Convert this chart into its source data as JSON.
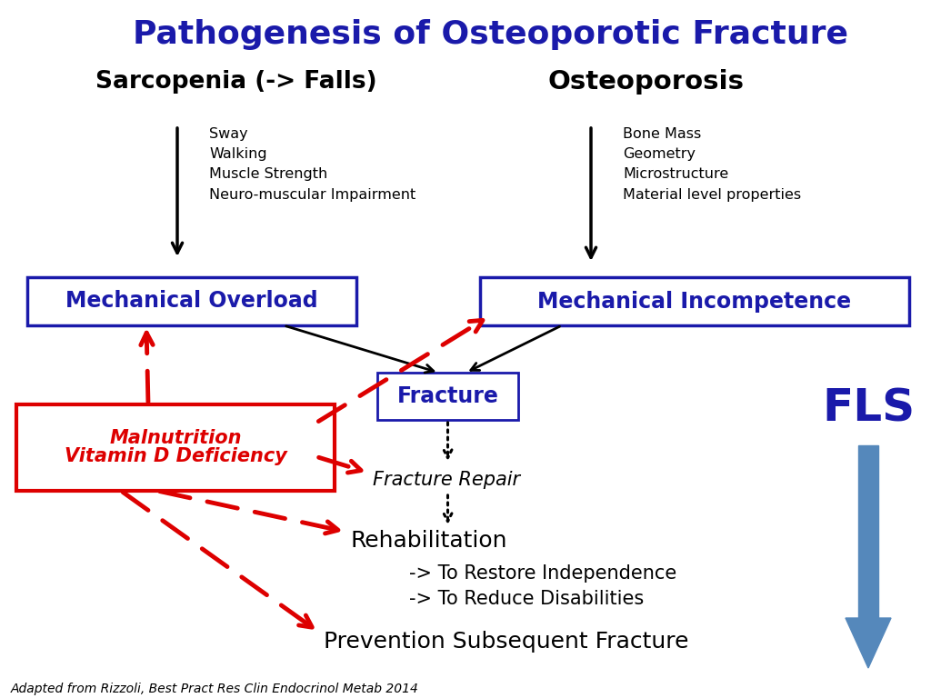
{
  "title": "Pathogenesis of Osteoporotic Fracture",
  "title_color": "#1a1aaa",
  "title_fontsize": 26,
  "bg_color": "#ffffff",
  "sarcopenia_label": "Sarcopenia (-> Falls)",
  "osteoporosis_label": "Osteoporosis",
  "sarcopenia_items": [
    "Sway",
    "Walking",
    "Muscle Strength",
    "Neuro-muscular Impairment"
  ],
  "osteoporosis_items": [
    "Bone Mass",
    "Geometry",
    "Microstructure",
    "Material level properties"
  ],
  "mech_overload_label": "Mechanical Overload",
  "mech_incompetence_label": "Mechanical Incompetence",
  "fracture_label": "Fracture",
  "malnutrition_line1": "Malnutrition",
  "malnutrition_line2": "Vitamin D Deficiency",
  "fracture_repair_label": "Fracture Repair",
  "rehab_label": "Rehabilitation",
  "rehab_item1": "-> To Restore Independence",
  "rehab_item2": "-> To Reduce Disabilities",
  "prevention_label": "Prevention Subsequent Fracture",
  "fls_label": "FLS",
  "citation": "Adapted from Rizzoli, Best Pract Res Clin Endocrinol Metab 2014",
  "blue": "#1a1aaa",
  "red": "#dd0000",
  "black": "#000000",
  "fls_blue": "#5588bb"
}
